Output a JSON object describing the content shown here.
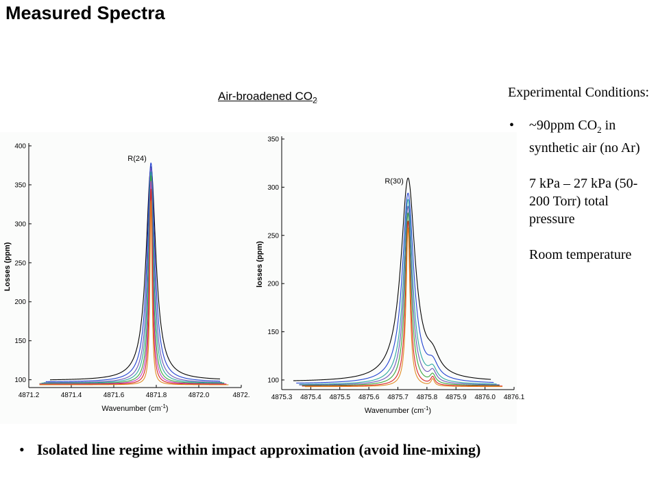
{
  "slide": {
    "title": "Measured Spectra",
    "subtitle_main": "Air-broadened CO",
    "subtitle_sub": "2"
  },
  "conditions": {
    "heading": "Experimental Conditions:",
    "items": [
      {
        "pre": "~90ppm CO",
        "sub": "2",
        "post": " in synthetic air (no Ar)"
      },
      {
        "pre": "7 kPa – 27 kPa (50-200 Torr) total pressure",
        "sub": "",
        "post": ""
      },
      {
        "pre": "Room temperature",
        "sub": "",
        "post": ""
      }
    ]
  },
  "bottom_note": "Isolated line regime within impact approximation (avoid line-mixing)",
  "chart_data": [
    {
      "type": "line",
      "annotation": "R(24)",
      "xlabel": "Wavenumber (cm-1)",
      "ylabel": "Losses (ppm)",
      "xlim": [
        4871.2,
        4872.2
      ],
      "ylim": [
        90,
        400
      ],
      "x_ticks": [
        "4871.2",
        "4871.4",
        "4871.6",
        "4871.8",
        "4872.0",
        "4872."
      ],
      "y_ticks": [
        100,
        150,
        200,
        250,
        300,
        350,
        400
      ],
      "center": 4871.775,
      "series": [
        {
          "color": "#000000",
          "base": 99,
          "peak": 373,
          "hw": 0.028,
          "x_range": [
            4871.3,
            4872.1
          ]
        },
        {
          "color": "#1f3fd1",
          "base": 97,
          "peak": 378,
          "hw": 0.022,
          "x_range": [
            4871.28,
            4872.1
          ]
        },
        {
          "color": "#6a55b8",
          "base": 96,
          "peak": 372,
          "hw": 0.018,
          "x_range": [
            4871.27,
            4872.11
          ]
        },
        {
          "color": "#2aa6a1",
          "base": 95.5,
          "peak": 367,
          "hw": 0.015,
          "x_range": [
            4871.26,
            4872.12
          ]
        },
        {
          "color": "#3aa63a",
          "base": 95,
          "peak": 362,
          "hw": 0.012,
          "x_range": [
            4871.25,
            4872.12
          ]
        },
        {
          "color": "#c43cc4",
          "base": 94.5,
          "peak": 355,
          "hw": 0.01,
          "x_range": [
            4871.25,
            4872.13
          ]
        },
        {
          "color": "#d82020",
          "base": 94,
          "peak": 345,
          "hw": 0.008,
          "x_range": [
            4871.25,
            4872.13
          ]
        },
        {
          "color": "#e08a20",
          "base": 93.5,
          "peak": 330,
          "hw": 0.006,
          "x_range": [
            4871.25,
            4872.14
          ]
        }
      ]
    },
    {
      "type": "line",
      "annotation": "R(30)",
      "xlabel": "Wavenumber (cm-1)",
      "ylabel": "losses (ppm)",
      "xlim": [
        4875.3,
        4876.1
      ],
      "ylim": [
        90,
        350
      ],
      "x_ticks": [
        "4875.3",
        "4875.4",
        "4875.5",
        "4875.6",
        "4875.7",
        "4875.8",
        "4875.9",
        "4876.0",
        "4876.1"
      ],
      "y_ticks": [
        100,
        150,
        200,
        250,
        300,
        350
      ],
      "center": 4875.735,
      "center2": 4875.82,
      "series": [
        {
          "color": "#000000",
          "base": 98,
          "peak": 308,
          "hw": 0.03,
          "peak2": 16,
          "x_range": [
            4875.34,
            4876.02
          ]
        },
        {
          "color": "#1f3fd1",
          "base": 96,
          "peak": 293,
          "hw": 0.024,
          "peak2": 14,
          "x_range": [
            4875.35,
            4876.03
          ]
        },
        {
          "color": "#2aa6a1",
          "base": 95,
          "peak": 287,
          "hw": 0.019,
          "peak2": 12,
          "x_range": [
            4875.36,
            4876.04
          ]
        },
        {
          "color": "#6a55b8",
          "base": 94.5,
          "peak": 280,
          "hw": 0.016,
          "peak2": 11,
          "x_range": [
            4875.36,
            4876.05
          ]
        },
        {
          "color": "#3aa63a",
          "base": 94,
          "peak": 273,
          "hw": 0.013,
          "peak2": 9,
          "x_range": [
            4875.37,
            4876.05
          ]
        },
        {
          "color": "#d82020",
          "base": 93.5,
          "peak": 265,
          "hw": 0.01,
          "peak2": 8,
          "x_range": [
            4875.37,
            4876.06
          ]
        },
        {
          "color": "#e08a20",
          "base": 93,
          "peak": 258,
          "hw": 0.008,
          "peak2": 7,
          "x_range": [
            4875.38,
            4876.06
          ]
        }
      ]
    }
  ]
}
